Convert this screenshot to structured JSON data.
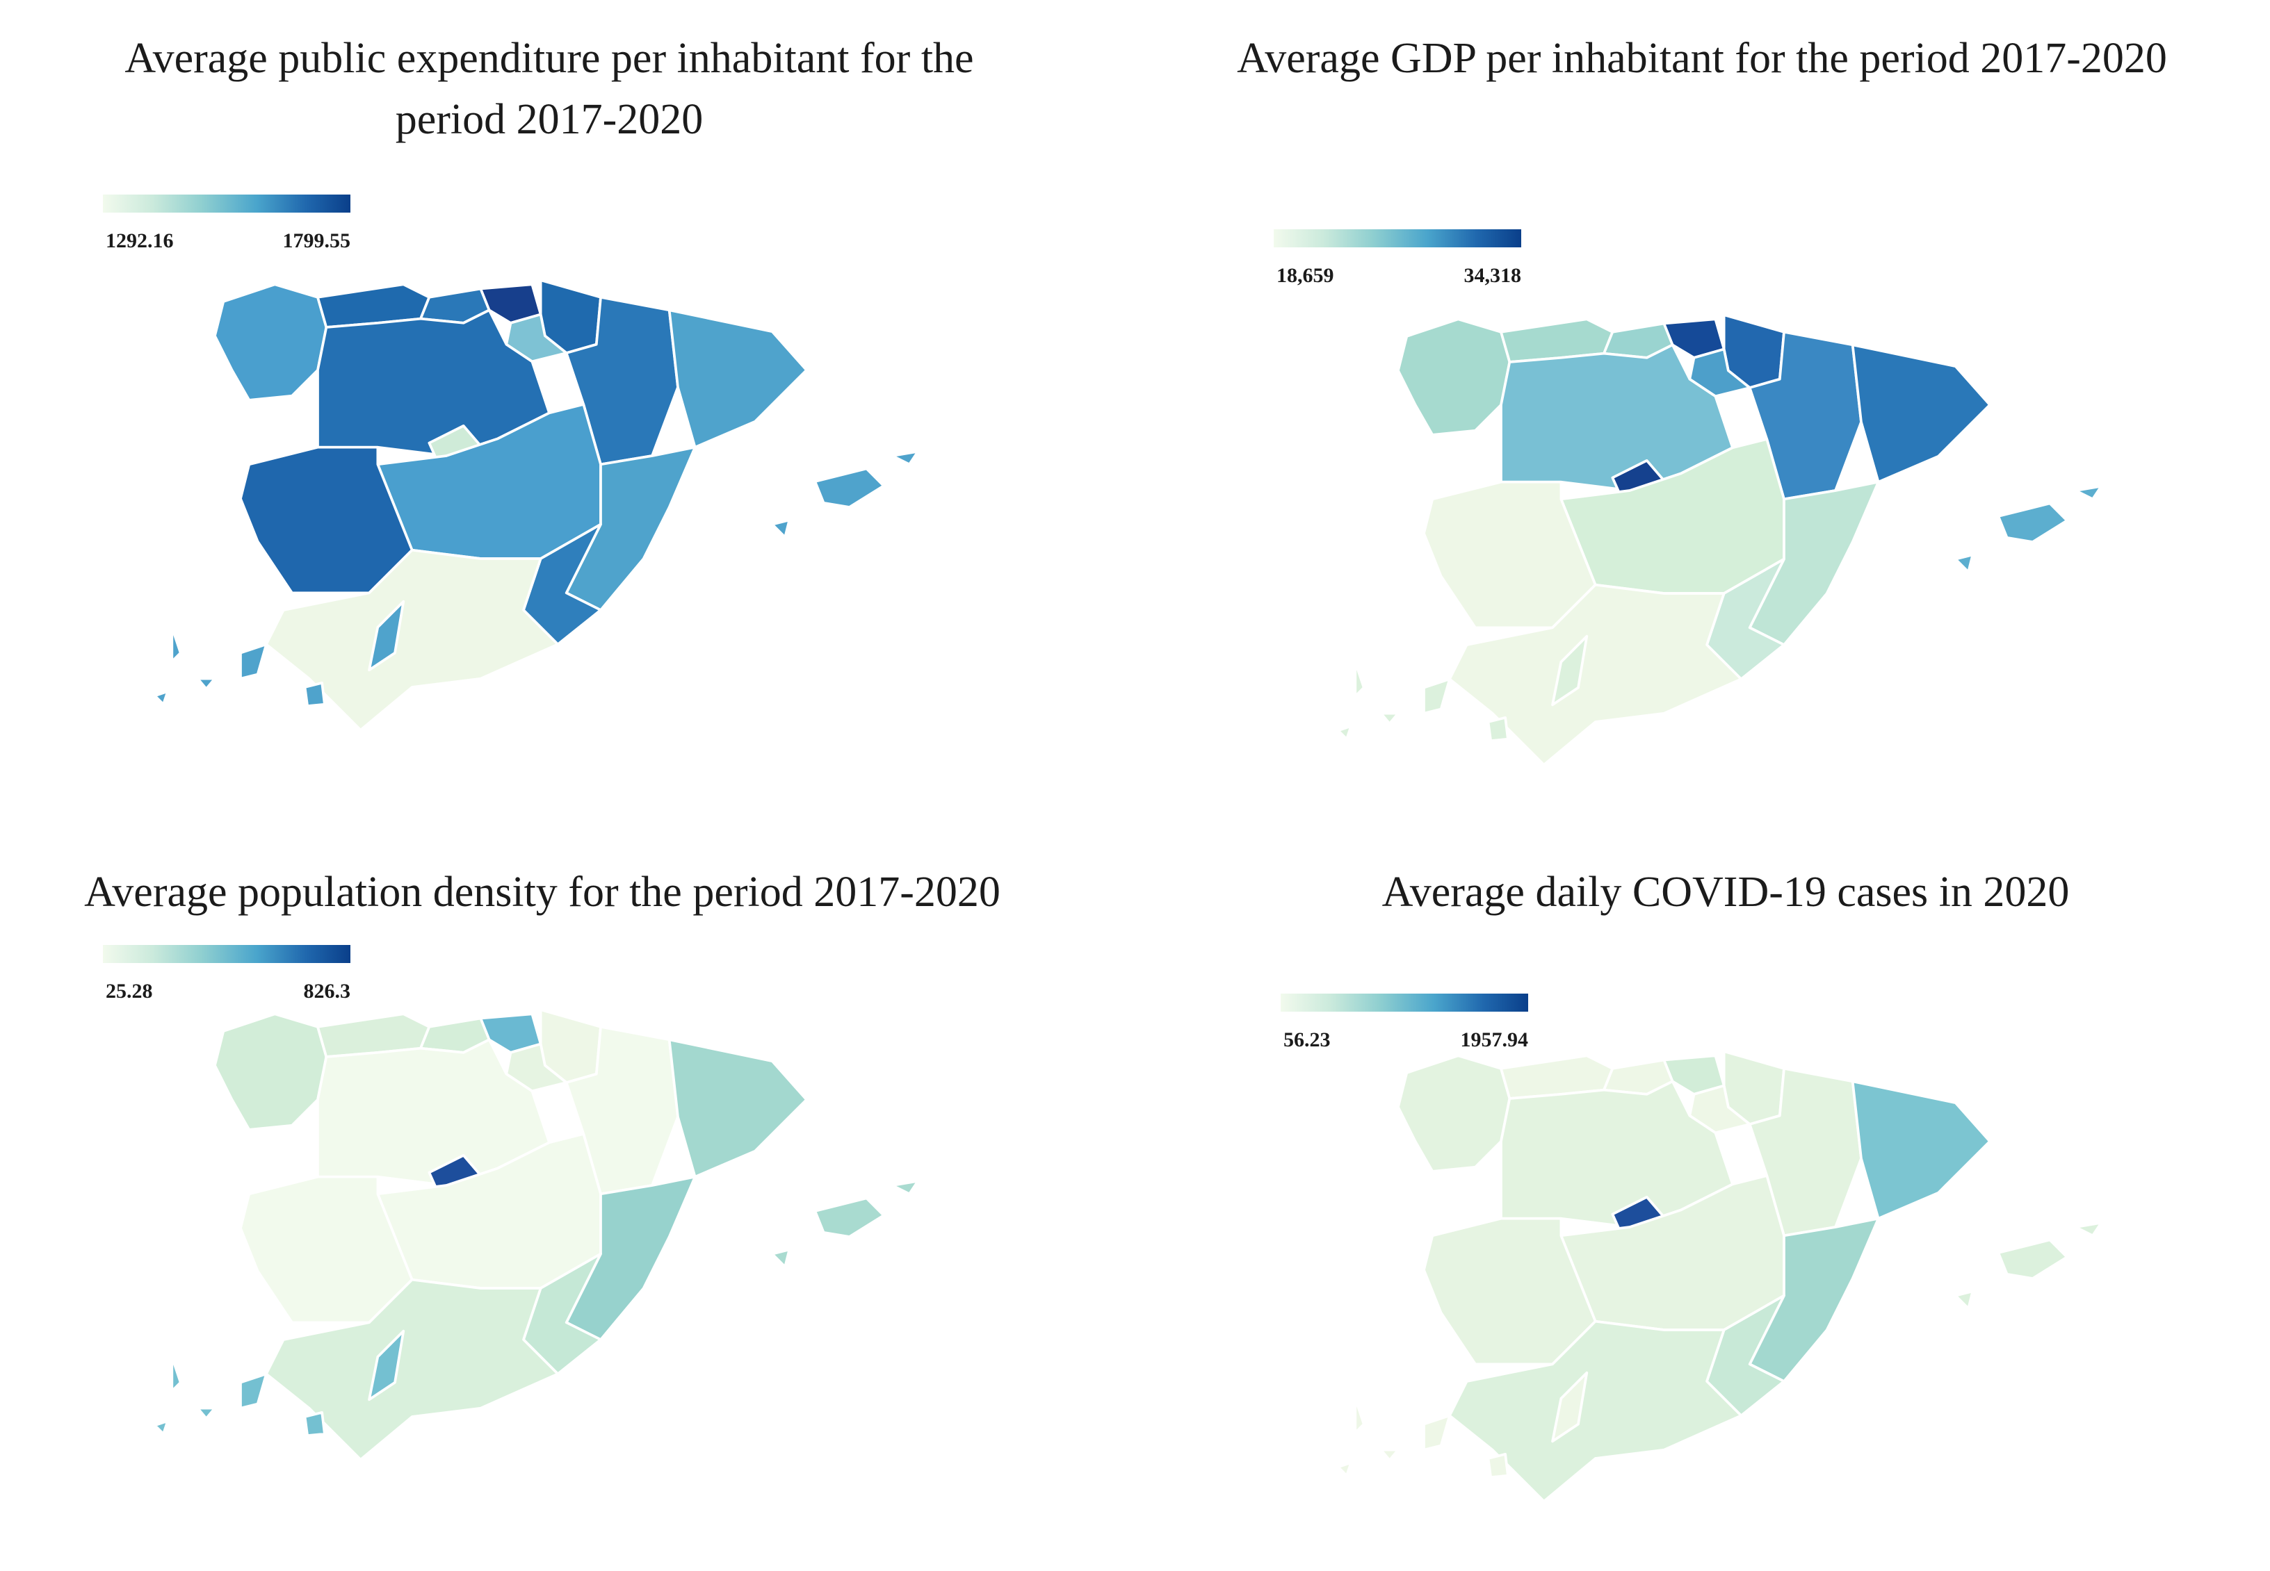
{
  "panels": [
    {
      "title_line1": "Average public expenditure per inhabitant for the",
      "title_line2": "period 2017-2020",
      "legend": {
        "min": "1292.16",
        "max": "1799.55"
      },
      "colors": {
        "galicia": "#4a9fce",
        "asturias": "#1f6aae",
        "cantabria": "#2a78b8",
        "basque": "#173f8c",
        "navarra": "#1f6aae",
        "larioja": "#7ec2d4",
        "aragon": "#2a78b8",
        "catalonia": "#4fa3cc",
        "castilla_leon": "#2470b3",
        "madrid": "#cfebd8",
        "castilla_mancha": "#4a9fce",
        "valencia": "#4fa3cc",
        "extremadura": "#1f67ad",
        "andalusia": "#eef7e7",
        "murcia": "#2f7fbc",
        "balearic": "#4fa3cc",
        "canary": "#4fa3cc"
      }
    },
    {
      "title_line1": "Average GDP per inhabitant for the period 2017-2020",
      "title_line2": "",
      "legend": {
        "min": "18,659",
        "max": "34,318"
      },
      "colors": {
        "galicia": "#a6dacf",
        "asturias": "#a6dacf",
        "cantabria": "#9ad4d0",
        "basque": "#154a98",
        "navarra": "#2268af",
        "larioja": "#4d9fca",
        "aragon": "#3a88c3",
        "catalonia": "#2a78b8",
        "castilla_leon": "#79c0d4",
        "madrid": "#15418e",
        "castilla_mancha": "#d5efd9",
        "valencia": "#bfe5d6",
        "extremadura": "#eef7e7",
        "andalusia": "#eef7e7",
        "murcia": "#cbeadc",
        "balearic": "#5caecf",
        "canary": "#dcf1dd"
      }
    },
    {
      "title_line1": "Average population density for the period 2017-2020",
      "title_line2": "",
      "legend": {
        "min": "25.28",
        "max": "826.3"
      },
      "colors": {
        "galicia": "#d2edd8",
        "asturias": "#dbf0dc",
        "cantabria": "#d5eed9",
        "basque": "#6ab9d2",
        "navarra": "#eef7e7",
        "larioja": "#e6f4e2",
        "aragon": "#f2faed",
        "catalonia": "#a3d8cf",
        "castilla_leon": "#f2faed",
        "madrid": "#1d4e9c",
        "castilla_mancha": "#f2faed",
        "valencia": "#97d2cd",
        "extremadura": "#f2faed",
        "andalusia": "#d9f0dc",
        "murcia": "#c5e8d6",
        "balearic": "#a9dbd0",
        "canary": "#74c0d1"
      }
    },
    {
      "title_line1": "Average daily COVID-19 cases in 2020",
      "title_line2": "",
      "legend": {
        "min": "56.23",
        "max": "1957.94"
      },
      "colors": {
        "galicia": "#e3f3e0",
        "asturias": "#eef7e7",
        "cantabria": "#eef7e7",
        "basque": "#d2edd8",
        "navarra": "#e3f3e0",
        "larioja": "#eef7e7",
        "aragon": "#e3f3e0",
        "catalonia": "#7cc5d1",
        "castilla_leon": "#e3f3e0",
        "madrid": "#1d4e9c",
        "castilla_mancha": "#e6f4e2",
        "valencia": "#a3d8cf",
        "extremadura": "#e6f4e2",
        "andalusia": "#dcf1dd",
        "murcia": "#c8e9d7",
        "balearic": "#dcf1dd",
        "canary": "#eef7e7"
      }
    }
  ]
}
